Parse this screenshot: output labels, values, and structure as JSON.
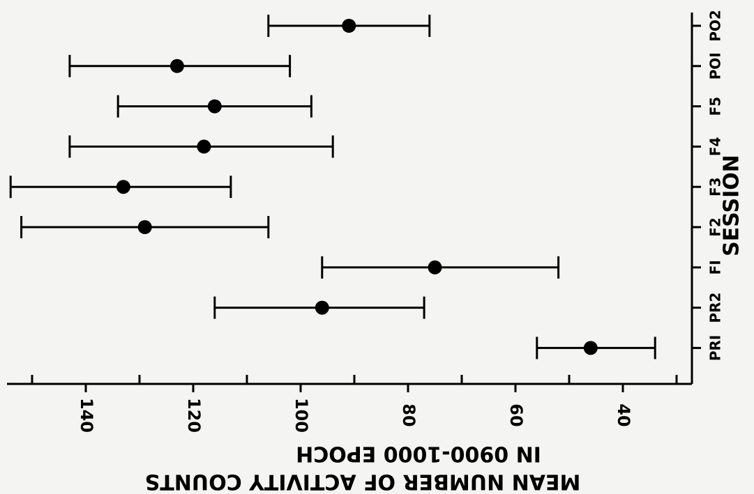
{
  "chart_data": {
    "type": "scatter",
    "orientation": "rotated-180",
    "ylabel": "SESSION",
    "xlabel_lines": [
      "MEAN NUMBER OF ACTIVITY COUNTS",
      "IN 0900-1000 EPOCH"
    ],
    "xlim": [
      30,
      155
    ],
    "xticks": [
      140,
      120,
      100,
      80,
      60,
      40
    ],
    "minor_ticks": [
      150,
      130,
      110,
      90,
      70,
      50,
      30
    ],
    "grid": false,
    "categories": [
      "PRI",
      "PR2",
      "FI",
      "F2",
      "F3",
      "F4",
      "F5",
      "POI",
      "PO2"
    ],
    "series": [
      {
        "values": [
          46,
          96,
          75,
          129,
          133,
          118,
          116,
          123,
          91
        ],
        "error_low": [
          34,
          77,
          52,
          106,
          113,
          94,
          98,
          102,
          76
        ],
        "error_high": [
          56,
          116,
          96,
          152,
          154,
          143,
          134,
          143,
          106
        ]
      }
    ]
  }
}
